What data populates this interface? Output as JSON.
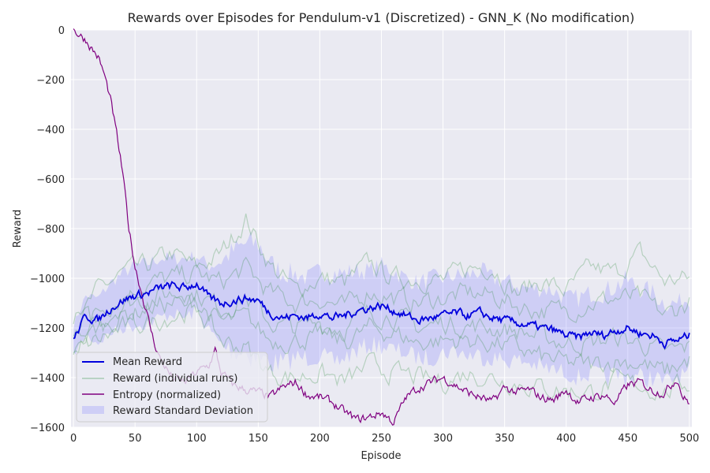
{
  "chart_data": {
    "type": "line",
    "title": "Rewards over Episodes for Pendulum-v1 (Discretized) - GNN_K (No modification)",
    "xlabel": "Episode",
    "ylabel": "Reward",
    "xlim": [
      -2,
      502
    ],
    "ylim": [
      -1600,
      0
    ],
    "x_ticks": [
      0,
      50,
      100,
      150,
      200,
      250,
      300,
      350,
      400,
      450,
      500
    ],
    "y_ticks": [
      0,
      -200,
      -400,
      -600,
      -800,
      -1000,
      -1200,
      -1400,
      -1600
    ],
    "grid": true,
    "legend_position": "lower-left",
    "colors": {
      "mean": "#0000dd",
      "runs": "#2e8b3e",
      "entropy": "#800080",
      "std_band": "#7b7bff",
      "background": "#eaeaf2",
      "grid": "#ffffff"
    },
    "series": [
      {
        "name": "Mean Reward",
        "role": "mean",
        "x": [
          0,
          10,
          20,
          30,
          40,
          50,
          60,
          70,
          80,
          90,
          100,
          110,
          120,
          130,
          140,
          150,
          160,
          170,
          180,
          190,
          200,
          210,
          220,
          230,
          240,
          250,
          260,
          270,
          280,
          290,
          300,
          310,
          320,
          330,
          340,
          350,
          360,
          370,
          380,
          390,
          400,
          410,
          420,
          430,
          440,
          450,
          460,
          470,
          480,
          490,
          500
        ],
        "values": [
          -1250,
          -1150,
          -1170,
          -1120,
          -1090,
          -1070,
          -1060,
          -1040,
          -1030,
          -1040,
          -1020,
          -1080,
          -1100,
          -1090,
          -1080,
          -1090,
          -1140,
          -1160,
          -1150,
          -1160,
          -1140,
          -1160,
          -1150,
          -1130,
          -1120,
          -1110,
          -1130,
          -1150,
          -1170,
          -1160,
          -1150,
          -1140,
          -1150,
          -1140,
          -1160,
          -1170,
          -1180,
          -1190,
          -1200,
          -1210,
          -1230,
          -1240,
          -1220,
          -1230,
          -1210,
          -1200,
          -1220,
          -1230,
          -1260,
          -1250,
          -1230
        ]
      },
      {
        "name": "Reward (individual runs)",
        "role": "runs",
        "x": [
          0,
          20,
          40,
          60,
          80,
          100,
          120,
          140,
          160,
          180,
          200,
          220,
          240,
          260,
          280,
          300,
          320,
          340,
          360,
          380,
          400,
          420,
          440,
          460,
          480,
          500
        ],
        "values_runs": [
          [
            -1200,
            -1050,
            -980,
            -950,
            -900,
            -960,
            -900,
            -760,
            -950,
            -1050,
            -1000,
            -1020,
            -940,
            -1000,
            -1000,
            -1010,
            -960,
            -950,
            -1060,
            -1010,
            -1050,
            -960,
            -980,
            -900,
            -1010,
            -1000
          ],
          [
            -1250,
            -1130,
            -1070,
            -1020,
            -1000,
            -980,
            -1020,
            -960,
            -1060,
            -1100,
            -1080,
            -1120,
            -1050,
            -1080,
            -1100,
            -1080,
            -1060,
            -1070,
            -1110,
            -1130,
            -1130,
            -1100,
            -1080,
            -1080,
            -1150,
            -1100
          ],
          [
            -1150,
            -1180,
            -1100,
            -1080,
            -1060,
            -1060,
            -1120,
            -1080,
            -1180,
            -1200,
            -1180,
            -1200,
            -1140,
            -1150,
            -1200,
            -1180,
            -1190,
            -1200,
            -1210,
            -1240,
            -1260,
            -1260,
            -1240,
            -1260,
            -1300,
            -1280
          ],
          [
            -1280,
            -1200,
            -1150,
            -1120,
            -1100,
            -1100,
            -1180,
            -1160,
            -1250,
            -1250,
            -1230,
            -1260,
            -1200,
            -1220,
            -1260,
            -1250,
            -1250,
            -1260,
            -1280,
            -1320,
            -1340,
            -1350,
            -1330,
            -1340,
            -1380,
            -1330
          ],
          [
            -1300,
            -1250,
            -1200,
            -1180,
            -1150,
            -1120,
            -1250,
            -1280,
            -1380,
            -1400,
            -1380,
            -1420,
            -1350,
            -1380,
            -1400,
            -1420,
            -1380,
            -1400,
            -1420,
            -1440,
            -1450,
            -1460,
            -1420,
            -1430,
            -1460,
            -1420
          ]
        ]
      },
      {
        "name": "Entropy (normalized)",
        "role": "entropy",
        "x": [
          0,
          10,
          20,
          25,
          30,
          35,
          40,
          45,
          50,
          55,
          60,
          65,
          70,
          80,
          90,
          100,
          110,
          115,
          120,
          130,
          140,
          150,
          160,
          170,
          180,
          190,
          200,
          210,
          220,
          230,
          240,
          250,
          260,
          270,
          280,
          290,
          300,
          310,
          320,
          330,
          340,
          350,
          360,
          370,
          380,
          390,
          400,
          410,
          420,
          430,
          440,
          450,
          460,
          470,
          480,
          490,
          495,
          500
        ],
        "values": [
          0,
          -40,
          -110,
          -180,
          -280,
          -420,
          -580,
          -800,
          -950,
          -1050,
          -1150,
          -1250,
          -1320,
          -1400,
          -1420,
          -1380,
          -1350,
          -1290,
          -1380,
          -1430,
          -1450,
          -1460,
          -1480,
          -1440,
          -1420,
          -1470,
          -1480,
          -1500,
          -1540,
          -1570,
          -1560,
          -1540,
          -1580,
          -1480,
          -1440,
          -1420,
          -1400,
          -1430,
          -1460,
          -1480,
          -1500,
          -1440,
          -1460,
          -1450,
          -1480,
          -1490,
          -1450,
          -1500,
          -1480,
          -1470,
          -1500,
          -1430,
          -1420,
          -1450,
          -1460,
          -1400,
          -1480,
          -1500
        ]
      },
      {
        "name": "Reward Standard Deviation",
        "role": "std_band",
        "x": [
          0,
          10,
          20,
          30,
          40,
          50,
          60,
          70,
          80,
          90,
          100,
          110,
          120,
          130,
          140,
          150,
          160,
          170,
          180,
          190,
          200,
          210,
          220,
          230,
          240,
          250,
          260,
          270,
          280,
          290,
          300,
          310,
          320,
          330,
          340,
          350,
          360,
          370,
          380,
          390,
          400,
          410,
          420,
          430,
          440,
          450,
          460,
          470,
          480,
          490,
          500
        ],
        "std": [
          60,
          80,
          90,
          100,
          110,
          120,
          120,
          120,
          110,
          120,
          110,
          130,
          170,
          200,
          220,
          230,
          200,
          180,
          170,
          160,
          170,
          180,
          170,
          160,
          150,
          160,
          160,
          150,
          150,
          160,
          150,
          150,
          160,
          170,
          160,
          160,
          150,
          150,
          160,
          160,
          150,
          160,
          160,
          170,
          180,
          190,
          180,
          170,
          160,
          150,
          150
        ]
      }
    ]
  }
}
